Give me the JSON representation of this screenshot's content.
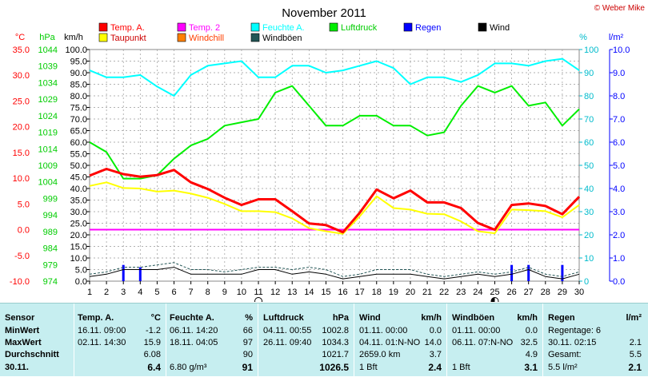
{
  "chart_data": {
    "type": "line",
    "title": "November 2011",
    "copyright": "© Weber Mike",
    "x": [
      1,
      2,
      3,
      4,
      5,
      6,
      7,
      8,
      9,
      10,
      11,
      12,
      13,
      14,
      15,
      16,
      17,
      18,
      19,
      20,
      21,
      22,
      23,
      24,
      25,
      26,
      27,
      28,
      29,
      30
    ],
    "legend": [
      {
        "name": "Temp. A.",
        "color": "#ff0000"
      },
      {
        "name": "Temp. 2",
        "color": "#ff00ff"
      },
      {
        "name": "Feuchte A.",
        "color": "#00ffff"
      },
      {
        "name": "Luftdruck",
        "color": "#00ee00"
      },
      {
        "name": "Regen",
        "color": "#0000ff"
      },
      {
        "name": "Wind",
        "color": "#000000"
      },
      {
        "name": "Taupunkt",
        "color": "#ffff00"
      },
      {
        "name": "Windchill",
        "color": "#ff8000"
      },
      {
        "name": "Windböen",
        "color": "#225555"
      }
    ],
    "axes": {
      "temp": {
        "unit": "°C",
        "ticks": [
          "35.0",
          "30.0",
          "25.0",
          "20.0",
          "15.0",
          "10.0",
          "5.0",
          "0.0",
          "-5.0",
          "-10.0"
        ],
        "range": [
          -10,
          35
        ],
        "color": "#ff0000"
      },
      "pressure": {
        "unit": "hPa",
        "ticks": [
          "1044",
          "1039",
          "1034",
          "1029",
          "1024",
          "1019",
          "1014",
          "1009",
          "1004",
          "999",
          "994",
          "989",
          "984",
          "979",
          "974"
        ],
        "range": [
          974,
          1044
        ],
        "color": "#00cc00"
      },
      "wind": {
        "unit": "km/h",
        "ticks": [
          "100.0",
          "95.0",
          "90.0",
          "85.0",
          "80.0",
          "75.0",
          "70.0",
          "65.0",
          "60.0",
          "55.0",
          "50.0",
          "45.0",
          "40.0",
          "35.0",
          "30.0",
          "25.0",
          "20.0",
          "15.0",
          "10.0",
          "5.0",
          "0.0"
        ],
        "range": [
          0,
          100
        ],
        "color": "#000000"
      },
      "humidity": {
        "unit": "%",
        "ticks": [
          "100",
          "90",
          "80",
          "70",
          "60",
          "50",
          "40",
          "30",
          "20",
          "10",
          "0"
        ],
        "range": [
          0,
          100
        ],
        "color": "#00cccc"
      },
      "rain": {
        "unit": "l/m²",
        "ticks": [
          "10.0",
          "9.0",
          "8.0",
          "7.0",
          "6.0",
          "5.0",
          "4.0",
          "3.0",
          "2.0",
          "1.0",
          "0.0"
        ],
        "range": [
          0,
          10
        ],
        "color": "#0000ff"
      }
    },
    "x_ticks": [
      "1",
      "2",
      "3",
      "4",
      "5",
      "6",
      "7",
      "8",
      "9",
      "10",
      "11",
      "12",
      "13",
      "14",
      "15",
      "16",
      "17",
      "18",
      "19",
      "20",
      "21",
      "22",
      "23",
      "24",
      "25",
      "26",
      "27",
      "28",
      "29",
      "30"
    ],
    "series": [
      {
        "name": "Feuchte A.",
        "axis": "humidity",
        "color": "#00ffff",
        "width": 2,
        "values": [
          91,
          88,
          88,
          89,
          84,
          80,
          89,
          93,
          94,
          95,
          88,
          88,
          93,
          93,
          90,
          91,
          93,
          95,
          92,
          85,
          88,
          88,
          86,
          89,
          94,
          94,
          93,
          95,
          96,
          91
        ]
      },
      {
        "name": "Luftdruck",
        "axis": "pressure",
        "color": "#00ee00",
        "width": 2,
        "values": [
          1016,
          1013,
          1005,
          1005,
          1006,
          1011,
          1015,
          1017,
          1021,
          1022,
          1023,
          1031,
          1033,
          1027,
          1021,
          1021,
          1024,
          1024,
          1021,
          1021,
          1018,
          1019,
          1027,
          1033,
          1031,
          1033,
          1027,
          1028,
          1021,
          1026
        ]
      },
      {
        "name": "Taupunkt",
        "axis": "temp",
        "color": "#ffff00",
        "width": 2,
        "values": [
          8.5,
          9.2,
          8.1,
          8.0,
          7.4,
          7.6,
          7.0,
          6.2,
          5.0,
          3.6,
          3.6,
          3.4,
          2.2,
          0.3,
          -0.3,
          -0.8,
          2.6,
          6.5,
          4.2,
          3.9,
          3.1,
          3.0,
          1.6,
          -0.3,
          -0.7,
          3.9,
          3.8,
          3.6,
          2.4,
          4.8
        ]
      },
      {
        "name": "Temp. A.",
        "axis": "temp",
        "color": "#ff0000",
        "width": 3,
        "values": [
          10.5,
          11.8,
          10.8,
          10.3,
          10.6,
          11.6,
          9.2,
          7.9,
          6.2,
          4.8,
          5.9,
          5.9,
          3.6,
          1.2,
          0.9,
          -0.5,
          3.3,
          7.8,
          6.1,
          7.6,
          5.3,
          5.3,
          4.2,
          1.3,
          0.0,
          4.8,
          5.1,
          4.6,
          3.0,
          6.4
        ]
      },
      {
        "name": "Wind",
        "axis": "wind",
        "color": "#000000",
        "width": 1,
        "values": [
          2,
          3,
          5,
          5,
          5,
          6,
          3,
          3,
          3,
          3,
          5,
          5,
          3,
          4,
          3,
          1,
          2,
          3,
          3,
          3,
          2,
          1,
          2,
          3,
          2,
          3,
          5,
          2,
          1,
          3
        ]
      },
      {
        "name": "Windböen",
        "axis": "wind",
        "color": "#225555",
        "width": 1,
        "dash": "3,2",
        "values": [
          3,
          4,
          6,
          6,
          7,
          8,
          5,
          5,
          4,
          5,
          6,
          6,
          5,
          6,
          5,
          2,
          3,
          5,
          5,
          5,
          3,
          2,
          3,
          4,
          3,
          4,
          6,
          3,
          2,
          4
        ]
      }
    ],
    "temp2_constant": 0.0,
    "rain_bars": [
      {
        "x": 3,
        "value": 0.7
      },
      {
        "x": 4,
        "value": 0.6
      },
      {
        "x": 26,
        "value": 0.7
      },
      {
        "x": 27,
        "value": 0.7
      },
      {
        "x": 29,
        "value": 0.7
      }
    ],
    "moon_markers": [
      {
        "x": 11,
        "phase": "full"
      },
      {
        "x": 25,
        "phase": "new"
      }
    ]
  },
  "stats": {
    "sensor": {
      "h": "Sensor",
      "min": "MinWert",
      "max": "MaxWert",
      "avg": "Durchschnitt",
      "date": "30.11."
    },
    "temp": {
      "h": "Temp. A.",
      "unit": "°C",
      "min_date": "16.11.  09:00",
      "min_val": "-1.2",
      "max_date": "02.11.  14:30",
      "max_val": "15.9",
      "avg_val": "6.08",
      "cur_val": "6.4"
    },
    "feuchte": {
      "h": "Feuchte A.",
      "unit": "%",
      "min_date": "06.11.  14:20",
      "min_val": "66",
      "max_date": "18.11.  04:05",
      "max_val": "97",
      "avg_val": "90",
      "cur_extra": "6.80 g/m³",
      "cur_val": "91"
    },
    "luft": {
      "h": "Luftdruck",
      "unit": "hPa",
      "min_date": "04.11.  00:55",
      "min_val": "1002.8",
      "max_date": "26.11.  09:40",
      "max_val": "1034.3",
      "avg_val": "1021.7",
      "cur_val": "1026.5"
    },
    "wind": {
      "h": "Wind",
      "unit": "km/h",
      "min_date": "01.11.  00:00",
      "min_val": "0.0",
      "max_date": "04.11.  01:N-NO",
      "max_val": "14.0",
      "avg_extra": "2659.0 km",
      "avg_val": "3.7",
      "cur_extra": "1 Bft",
      "cur_val": "2.4"
    },
    "boeen": {
      "h": "Windböen",
      "unit": "km/h",
      "min_date": "01.11.  00:00",
      "min_val": "0.0",
      "max_date": "06.11.  07:N-NO",
      "max_val": "32.5",
      "avg_val": "4.9",
      "cur_extra": "1 Bft",
      "cur_val": "3.1"
    },
    "regen": {
      "h": "Regen",
      "unit": "l/m²",
      "r1": "Regentage: 6",
      "r2_label": "30.11.  02:15",
      "r2_val": "2.1",
      "r3_label": "Gesamt:",
      "r3_val": "5.5",
      "r4_label": "5.5 l/m²",
      "r4_val": "2.1"
    }
  }
}
